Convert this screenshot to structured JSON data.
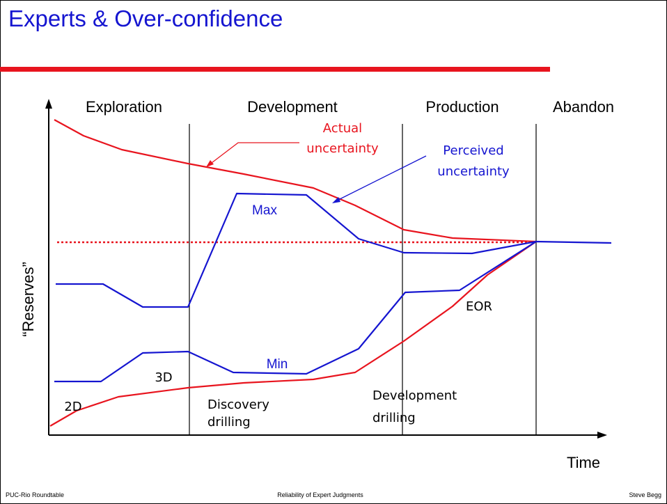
{
  "title": "Experts & Over-confidence",
  "phases": [
    "Exploration",
    "Development",
    "Production",
    "Abandon"
  ],
  "y_axis_label": "“Reserves”",
  "x_axis_label": "Time",
  "annotations": {
    "actual": [
      "Actual",
      "uncertainty"
    ],
    "perceived": [
      "Perceived",
      "uncertainty"
    ],
    "max": "Max",
    "min": "Min",
    "seismic_3d": "3D",
    "seismic_2d": "2D",
    "discovery": [
      "Discovery",
      "drilling"
    ],
    "development": [
      "Development",
      "drilling"
    ],
    "eor": "EOR"
  },
  "footer": {
    "left": "PUC-Rio Roundtable",
    "center": "Reliability of Expert Judgments",
    "right": "Steve Begg"
  }
}
